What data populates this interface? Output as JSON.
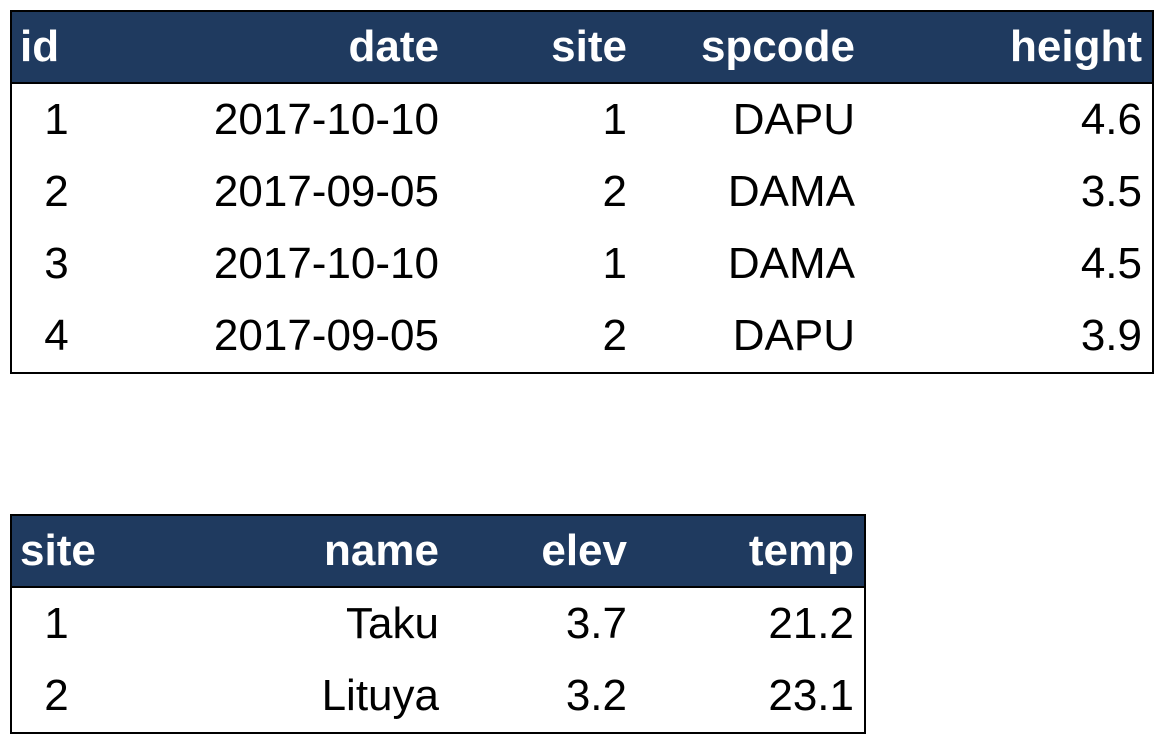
{
  "observations": {
    "headers": [
      "id",
      "date",
      "site",
      "spcode",
      "height"
    ],
    "rows": [
      [
        "1",
        "2017-10-10",
        "1",
        "DAPU",
        "4.6"
      ],
      [
        "2",
        "2017-09-05",
        "2",
        "DAMA",
        "3.5"
      ],
      [
        "3",
        "2017-10-10",
        "1",
        "DAMA",
        "4.5"
      ],
      [
        "4",
        "2017-09-05",
        "2",
        "DAPU",
        "3.9"
      ]
    ]
  },
  "sites": {
    "headers": [
      "site",
      "name",
      "elev",
      "temp"
    ],
    "rows": [
      [
        "1",
        "Taku",
        "3.7",
        "21.2"
      ],
      [
        "2",
        "Lituya",
        "3.2",
        "23.1"
      ]
    ]
  },
  "colors": {
    "header_background": "#1f3a5f",
    "header_text": "#ffffff",
    "border": "#000000"
  }
}
